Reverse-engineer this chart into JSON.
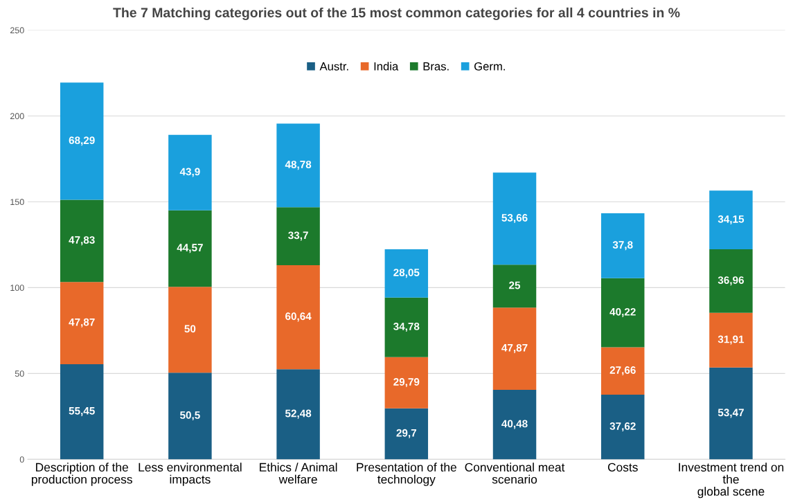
{
  "chart_data": {
    "type": "bar",
    "stacked": true,
    "title": "The 7 Matching categories out of the 15 most common categories for all 4 countries in %",
    "categories": [
      "Description of the production process",
      "Less environmental impacts",
      "Ethics / Animal welfare",
      "Presentation of the technology",
      "Conventional meat scenario",
      "Costs",
      "Investment trend on the global scene"
    ],
    "series": [
      {
        "name": "Austr.",
        "color": "#1a5f85",
        "values": [
          55.45,
          50.5,
          52.48,
          29.7,
          40.48,
          37.62,
          53.47
        ],
        "value_labels": [
          "55,45",
          "50,5",
          "52,48",
          "29,7",
          "40,48",
          "37,62",
          "53,47"
        ]
      },
      {
        "name": "India",
        "color": "#e8692a",
        "values": [
          47.87,
          50,
          60.64,
          29.79,
          47.87,
          27.66,
          31.91
        ],
        "value_labels": [
          "47,87",
          "50",
          "60,64",
          "29,79",
          "47,87",
          "27,66",
          "31,91"
        ]
      },
      {
        "name": "Bras.",
        "color": "#1c7a2c",
        "values": [
          47.83,
          44.57,
          33.7,
          34.78,
          25,
          40.22,
          36.96
        ],
        "value_labels": [
          "47,83",
          "44,57",
          "33,7",
          "34,78",
          "25",
          "40,22",
          "36,96"
        ]
      },
      {
        "name": "Germ.",
        "color": "#1aa0dd",
        "values": [
          68.29,
          43.9,
          48.78,
          28.05,
          53.66,
          37.8,
          34.15
        ],
        "value_labels": [
          "68,29",
          "43,9",
          "48,78",
          "28,05",
          "53,66",
          "37,8",
          "34,15"
        ]
      }
    ],
    "ylim": [
      0,
      250
    ],
    "yticks": [
      0,
      50,
      100,
      150,
      200,
      250
    ],
    "grid": "y",
    "legend": "top"
  }
}
